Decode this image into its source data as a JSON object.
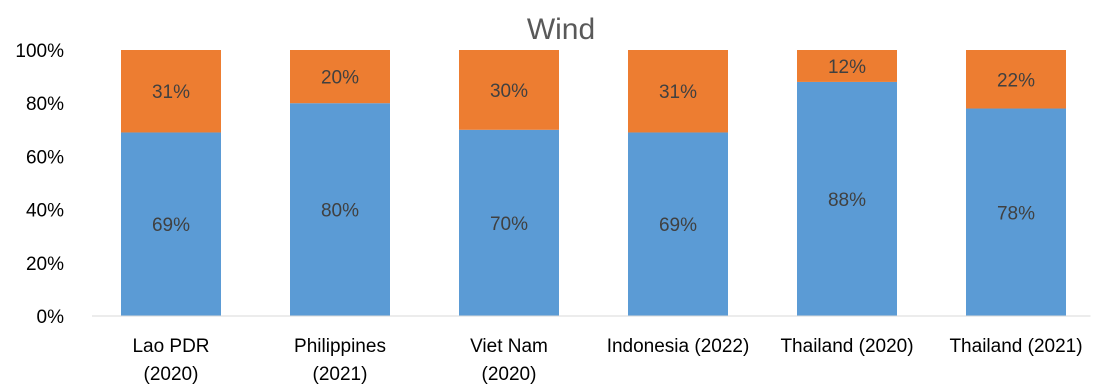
{
  "chart_data": {
    "type": "bar",
    "stacked": true,
    "percent": true,
    "title": "Wind",
    "categories": [
      [
        "Lao PDR",
        "(2020)"
      ],
      [
        "Philippines",
        "(2021)"
      ],
      [
        "Viet Nam",
        "(2020)"
      ],
      [
        "Indonesia (2022)"
      ],
      [
        "Thailand (2020)"
      ],
      [
        "Thailand (2021)"
      ]
    ],
    "series": [
      {
        "color": "#5B9BD5",
        "values": [
          69,
          80,
          70,
          69,
          88,
          78
        ],
        "labels": [
          "69%",
          "80%",
          "70%",
          "69%",
          "88%",
          "78%"
        ]
      },
      {
        "color": "#ED7D31",
        "values": [
          31,
          20,
          30,
          31,
          12,
          22
        ],
        "labels": [
          "31%",
          "20%",
          "30%",
          "31%",
          "12%",
          "22%"
        ]
      }
    ],
    "ylim": [
      0,
      100
    ],
    "yticks": [
      "0%",
      "20%",
      "40%",
      "60%",
      "80%",
      "100%"
    ],
    "xlabel": "",
    "ylabel": "",
    "grid": false,
    "legend": "none"
  }
}
